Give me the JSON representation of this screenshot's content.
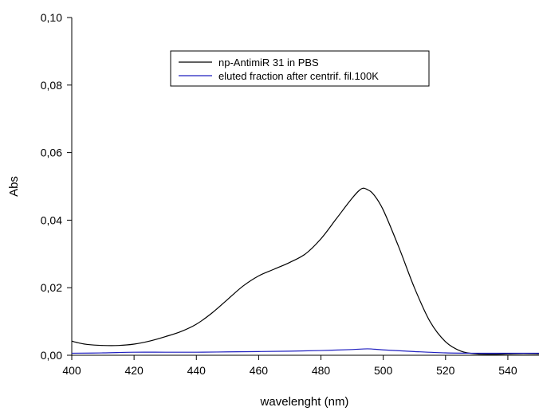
{
  "chart_data": {
    "type": "line",
    "title": "",
    "xlabel": "wavelenght (nm)",
    "ylabel": "Abs",
    "xlim": [
      400,
      550
    ],
    "ylim": [
      0,
      0.1
    ],
    "xticks": [
      400,
      420,
      440,
      460,
      480,
      500,
      520,
      540
    ],
    "xtick_labels": [
      "400",
      "420",
      "440",
      "460",
      "480",
      "500",
      "520",
      "540"
    ],
    "yticks": [
      0,
      0.02,
      0.04,
      0.06,
      0.08,
      0.1
    ],
    "ytick_labels": [
      "0,00",
      "0,02",
      "0,04",
      "0,06",
      "0,08",
      "0,10"
    ],
    "grid": false,
    "legend_position": "top-center",
    "series": [
      {
        "name": "np-AntimiR 31 in PBS",
        "color": "#000000",
        "x": [
          400,
          402,
          405,
          410,
          415,
          420,
          425,
          430,
          435,
          440,
          445,
          450,
          455,
          460,
          465,
          470,
          475,
          480,
          485,
          490,
          493,
          495,
          497,
          500,
          505,
          510,
          515,
          520,
          525,
          530,
          535,
          540,
          545,
          550
        ],
        "y": [
          0.0042,
          0.0037,
          0.0032,
          0.0029,
          0.0029,
          0.0033,
          0.0042,
          0.0055,
          0.007,
          0.0092,
          0.0125,
          0.0165,
          0.0205,
          0.0235,
          0.0255,
          0.0275,
          0.03,
          0.0345,
          0.0405,
          0.0465,
          0.0493,
          0.049,
          0.0475,
          0.043,
          0.032,
          0.02,
          0.01,
          0.004,
          0.0012,
          0.0004,
          0.0003,
          0.0004,
          0.0005,
          0.0004
        ]
      },
      {
        "name": "eluted fraction after centrif. fil.100K",
        "color": "#1f1fbf",
        "x": [
          400,
          410,
          420,
          430,
          440,
          450,
          460,
          470,
          480,
          490,
          495,
          500,
          510,
          520,
          530,
          540,
          550
        ],
        "y": [
          0.0006,
          0.0007,
          0.0009,
          0.0009,
          0.0009,
          0.001,
          0.0011,
          0.0012,
          0.0014,
          0.0017,
          0.0019,
          0.0016,
          0.0011,
          0.0007,
          0.0006,
          0.0006,
          0.0006
        ]
      }
    ]
  }
}
